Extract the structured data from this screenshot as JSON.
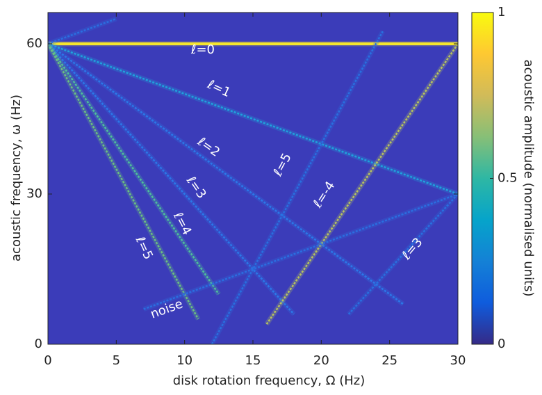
{
  "chart_data": {
    "type": "heatmap",
    "xlabel": "disk rotation frequency, Ω (Hz)",
    "ylabel": "acoustic frequency, ω (Hz)",
    "colorbar_label": "acoustic amplitude (normalised units)",
    "xlim": [
      0,
      30
    ],
    "ylim": [
      0,
      66.25
    ],
    "xticks": [
      0,
      5,
      10,
      15,
      20,
      25,
      30
    ],
    "yticks": [
      0,
      30,
      60
    ],
    "clim": [
      0,
      1
    ],
    "cticks": [
      0,
      0.5,
      1
    ],
    "background": "#3b3cb9",
    "colormap": [
      "#352a87",
      "#0f5cdd",
      "#1481d6",
      "#06a4ca",
      "#2eb7a4",
      "#87bf77",
      "#d1bb59",
      "#fec832",
      "#f9fb0e"
    ],
    "series": [
      {
        "color": "#f5e52e",
        "x": [
          0,
          30
        ],
        "values": [
          60,
          60
        ]
      },
      {
        "color": "#1fa2dc",
        "x": [
          0,
          30
        ],
        "values": [
          60,
          30
        ]
      },
      {
        "color": "#2b78e8",
        "x": [
          0,
          26
        ],
        "values": [
          60,
          8
        ]
      },
      {
        "color": "#2b78e8",
        "x": [
          0,
          18
        ],
        "values": [
          60,
          6
        ]
      },
      {
        "color": "#4fbf9a",
        "x": [
          0,
          12.5
        ],
        "values": [
          60,
          10
        ]
      },
      {
        "color": "#6cc07f",
        "x": [
          0,
          11
        ],
        "values": [
          60,
          5
        ]
      },
      {
        "color": "#b8c45c",
        "x": [
          16,
          30
        ],
        "values": [
          4,
          60
        ]
      },
      {
        "color": "#2870e0",
        "x": [
          12,
          24.5
        ],
        "values": [
          0,
          62.5
        ]
      },
      {
        "color": "#2870e0",
        "x": [
          22,
          30
        ],
        "values": [
          6,
          30
        ]
      },
      {
        "color": "#2a6ee0",
        "x": [
          7,
          30
        ],
        "values": [
          7,
          30
        ]
      },
      {
        "color": "#2a6ee0",
        "x": [
          0,
          5
        ],
        "values": [
          60,
          65
        ]
      }
    ],
    "annotations": [
      "ℓ=0",
      "ℓ=1",
      "ℓ=2",
      "ℓ=3",
      "ℓ=4",
      "ℓ=5",
      "ℓ=5",
      "ℓ=-4",
      "ℓ=3",
      "noise"
    ]
  }
}
